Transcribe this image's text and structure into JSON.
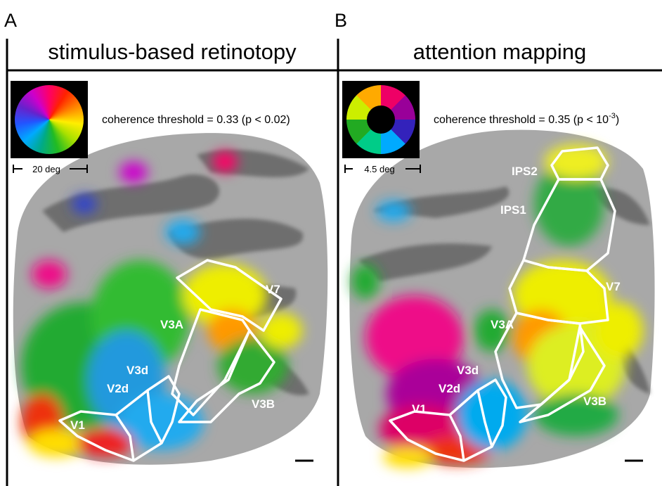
{
  "panels": [
    {
      "letter": "A",
      "title": "stimulus-based retinotopy",
      "threshold": "coherence threshold = 0.33 (p < 0.02)",
      "scale_label": "20 deg",
      "regions": [
        "V7",
        "V3A",
        "V3d",
        "V2d",
        "V1",
        "V3B"
      ]
    },
    {
      "letter": "B",
      "title": "attention mapping",
      "threshold": "coherence threshold = 0.35 (p < 10",
      "threshold_exponent": "-3",
      "threshold_end": ")",
      "scale_label": "4.5 deg",
      "regions": [
        "IPS2",
        "IPS1",
        "V7",
        "V3A",
        "V3d",
        "V2d",
        "V1",
        "V3B"
      ]
    }
  ]
}
